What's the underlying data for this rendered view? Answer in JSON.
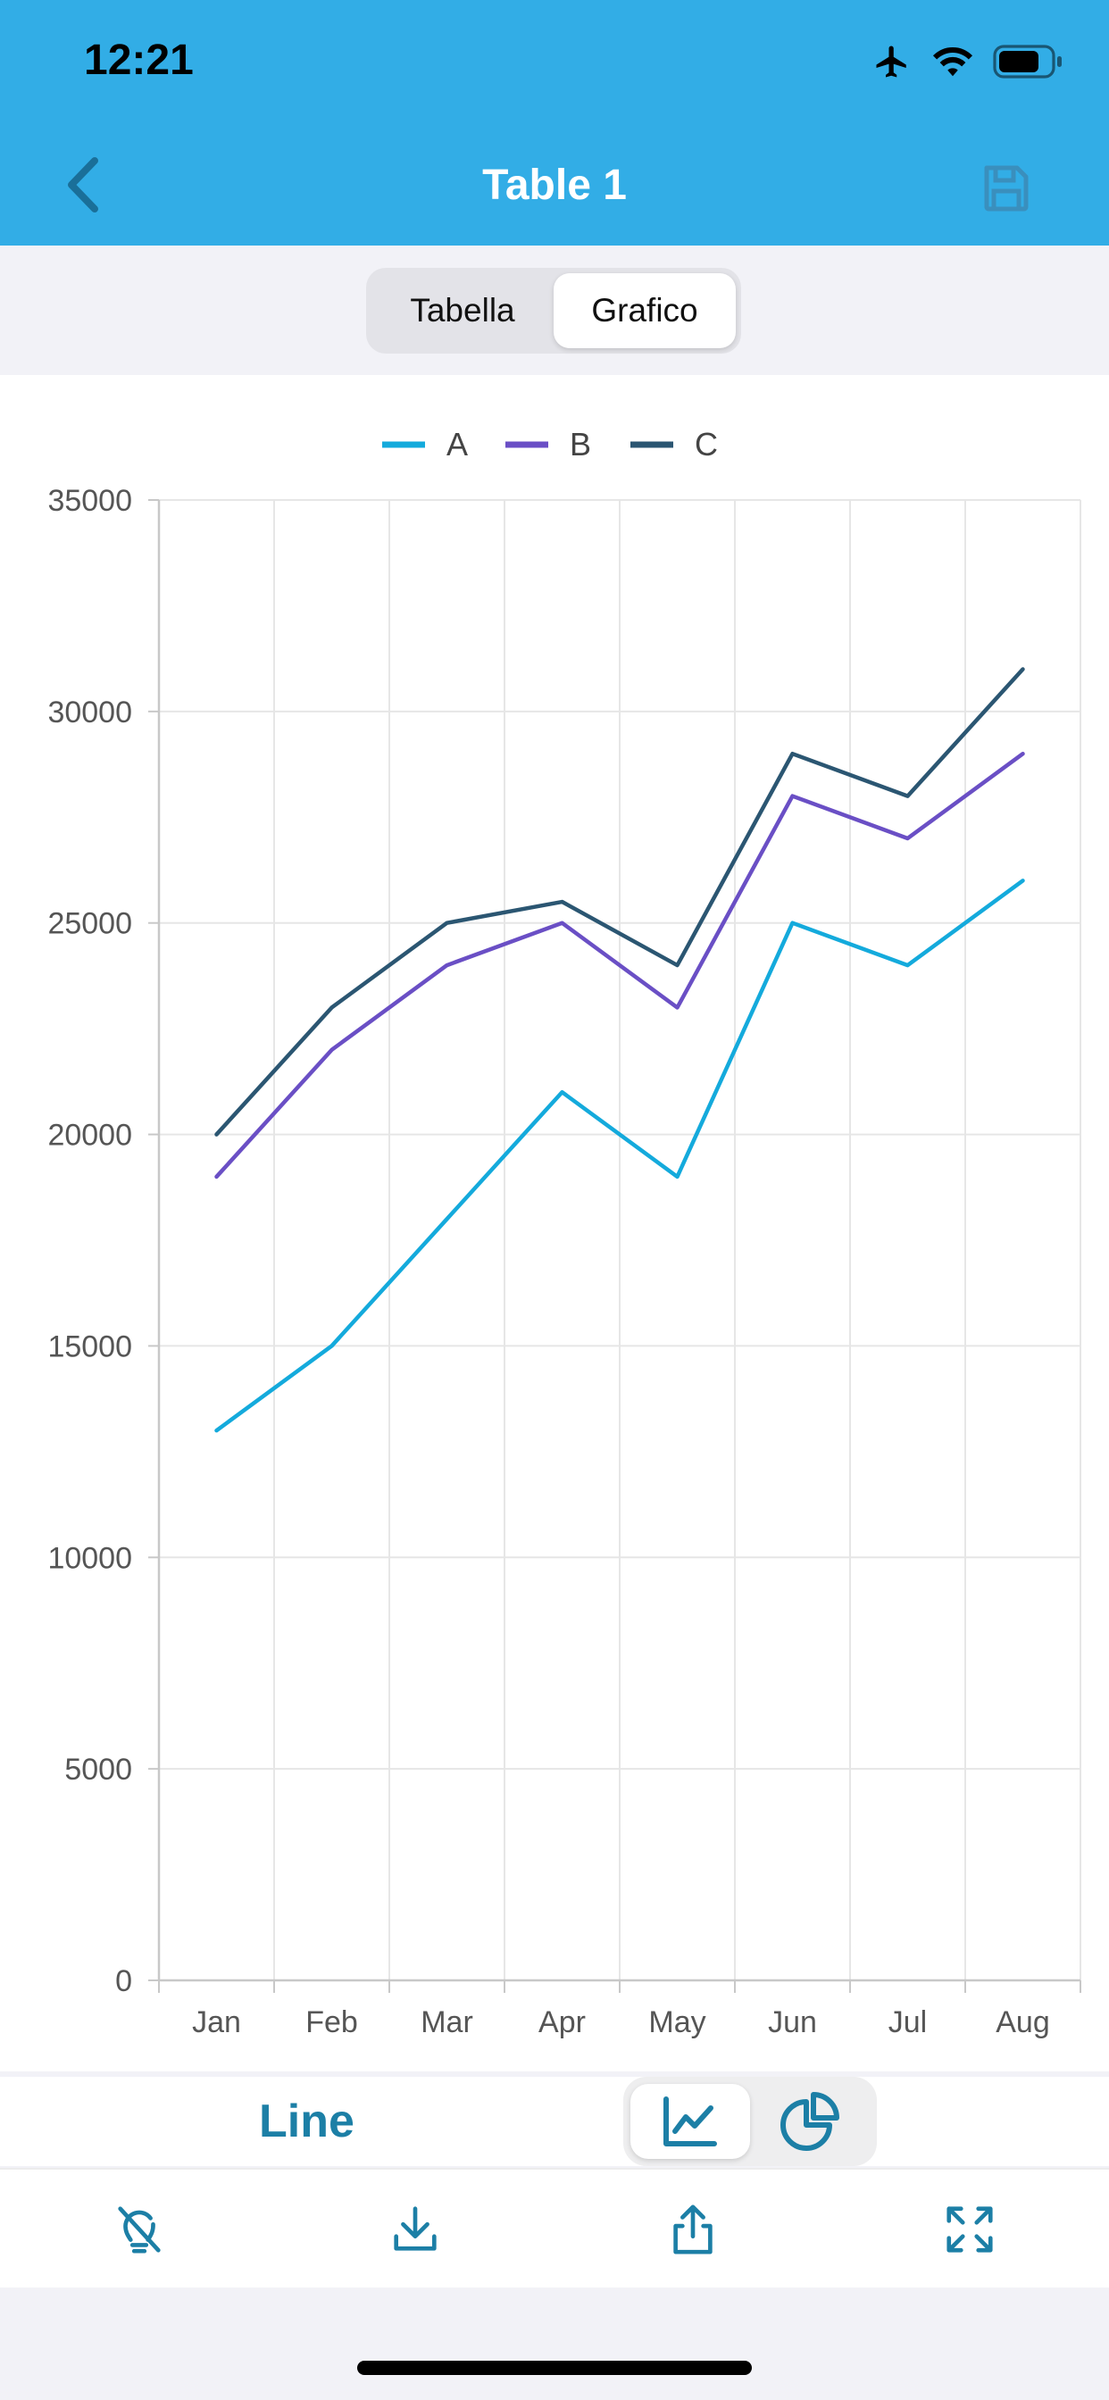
{
  "status_bar": {
    "time": "12:21",
    "icons": [
      "airplane-icon",
      "wifi-icon",
      "battery-icon"
    ]
  },
  "nav": {
    "title": "Table 1",
    "back_icon": "chevron-left-icon",
    "save_icon": "save-icon"
  },
  "segments": [
    {
      "label": "Tabella",
      "active": false
    },
    {
      "label": "Grafico",
      "active": true
    }
  ],
  "colors": {
    "header": "#32ade6",
    "series_a": "#14aadc",
    "series_b": "#6a4fc5",
    "series_c": "#2b5672",
    "accent": "#1c7fa6"
  },
  "chart_data": {
    "type": "line",
    "title": "",
    "xlabel": "",
    "ylabel": "",
    "categories": [
      "Jan",
      "Feb",
      "Mar",
      "Apr",
      "May",
      "Jun",
      "Jul",
      "Aug"
    ],
    "ylim": [
      0,
      35000
    ],
    "yticks": [
      "0",
      "5000",
      "10000",
      "15000",
      "20000",
      "25000",
      "30000",
      "35000"
    ],
    "grid": true,
    "legend_position": "top-center",
    "series": [
      {
        "name": "A",
        "color": "#14aadc",
        "values": [
          13000,
          15000,
          18000,
          21000,
          19000,
          25000,
          24000,
          26000
        ]
      },
      {
        "name": "B",
        "color": "#6a4fc5",
        "values": [
          19000,
          22000,
          24000,
          25000,
          23000,
          28000,
          27000,
          29000
        ]
      },
      {
        "name": "C",
        "color": "#2b5672",
        "values": [
          20000,
          23000,
          25000,
          25500,
          24000,
          29000,
          28000,
          31000
        ]
      }
    ]
  },
  "chart_type": {
    "label": "Line",
    "options": [
      {
        "icon": "line-chart-icon",
        "active": true
      },
      {
        "icon": "pie-chart-icon",
        "active": false
      }
    ]
  },
  "toolbar": {
    "items": [
      "lightbulb-off-icon",
      "download-icon",
      "share-icon",
      "expand-icon"
    ]
  }
}
